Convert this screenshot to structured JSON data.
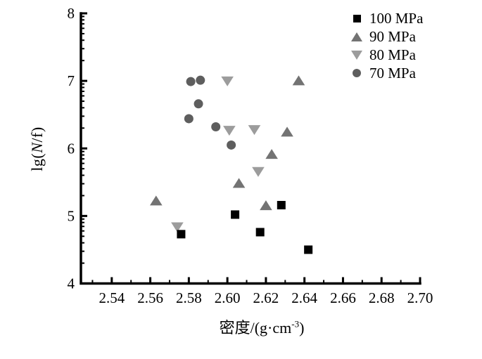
{
  "figure": {
    "ylabel": {
      "pre": "lg(",
      "italic": "N",
      "post": "/f)"
    },
    "xlabel": {
      "pre": "密度/(g·cm",
      "sup": "-3",
      "post": ")"
    }
  },
  "chart_data": {
    "type": "scatter",
    "title": "",
    "xlabel": "密度/(g·cm-3)",
    "ylabel": "lg(N/f)",
    "xlim": [
      2.524,
      2.7
    ],
    "ylim": [
      4,
      8
    ],
    "grid": false,
    "legend_position": "top-right",
    "x_major_ticks": [
      2.54,
      2.56,
      2.58,
      2.6,
      2.62,
      2.64,
      2.66,
      2.68,
      2.7
    ],
    "x_tick_labels": [
      "2.54",
      "2.56",
      "2.58",
      "2.60",
      "2.62",
      "2.64",
      "2.66",
      "2.68",
      "2.70"
    ],
    "x_minor_ticks": [
      2.53,
      2.55,
      2.57,
      2.59,
      2.61,
      2.63,
      2.65,
      2.67,
      2.69
    ],
    "y_major_ticks": [
      4,
      5,
      6,
      7,
      8
    ],
    "y_tick_labels": [
      "4",
      "5",
      "6",
      "7",
      "8"
    ],
    "y_minor_ticks": [
      4.301,
      4.477,
      4.602,
      4.699,
      4.778,
      4.845,
      4.903,
      4.954,
      5.301,
      5.477,
      5.602,
      5.699,
      5.778,
      5.845,
      5.903,
      5.954,
      6.301,
      6.477,
      6.602,
      6.699,
      6.778,
      6.845,
      6.903,
      6.954,
      7.301,
      7.477,
      7.602,
      7.699,
      7.778,
      7.845,
      7.903,
      7.954
    ],
    "series": [
      {
        "name": "100 MPa",
        "marker": "square",
        "color": "#000000",
        "points": [
          [
            2.576,
            4.73
          ],
          [
            2.604,
            5.02
          ],
          [
            2.617,
            4.76
          ],
          [
            2.628,
            5.16
          ],
          [
            2.642,
            4.5
          ]
        ]
      },
      {
        "name": "90 MPa",
        "marker": "triangle-up",
        "color": "#737373",
        "points": [
          [
            2.563,
            5.22
          ],
          [
            2.606,
            5.48
          ],
          [
            2.62,
            5.15
          ],
          [
            2.623,
            5.91
          ],
          [
            2.631,
            6.24
          ],
          [
            2.637,
            7.0
          ]
        ]
      },
      {
        "name": "80 MPa",
        "marker": "triangle-down",
        "color": "#9c9c9c",
        "points": [
          [
            2.574,
            4.84
          ],
          [
            2.6,
            7.0
          ],
          [
            2.601,
            6.27
          ],
          [
            2.614,
            6.28
          ],
          [
            2.616,
            5.66
          ]
        ]
      },
      {
        "name": "70 MPa",
        "marker": "circle",
        "color": "#5e5e5e",
        "points": [
          [
            2.58,
            6.44
          ],
          [
            2.581,
            6.99
          ],
          [
            2.585,
            6.66
          ],
          [
            2.586,
            7.01
          ],
          [
            2.594,
            6.32
          ],
          [
            2.602,
            6.05
          ]
        ]
      }
    ]
  }
}
